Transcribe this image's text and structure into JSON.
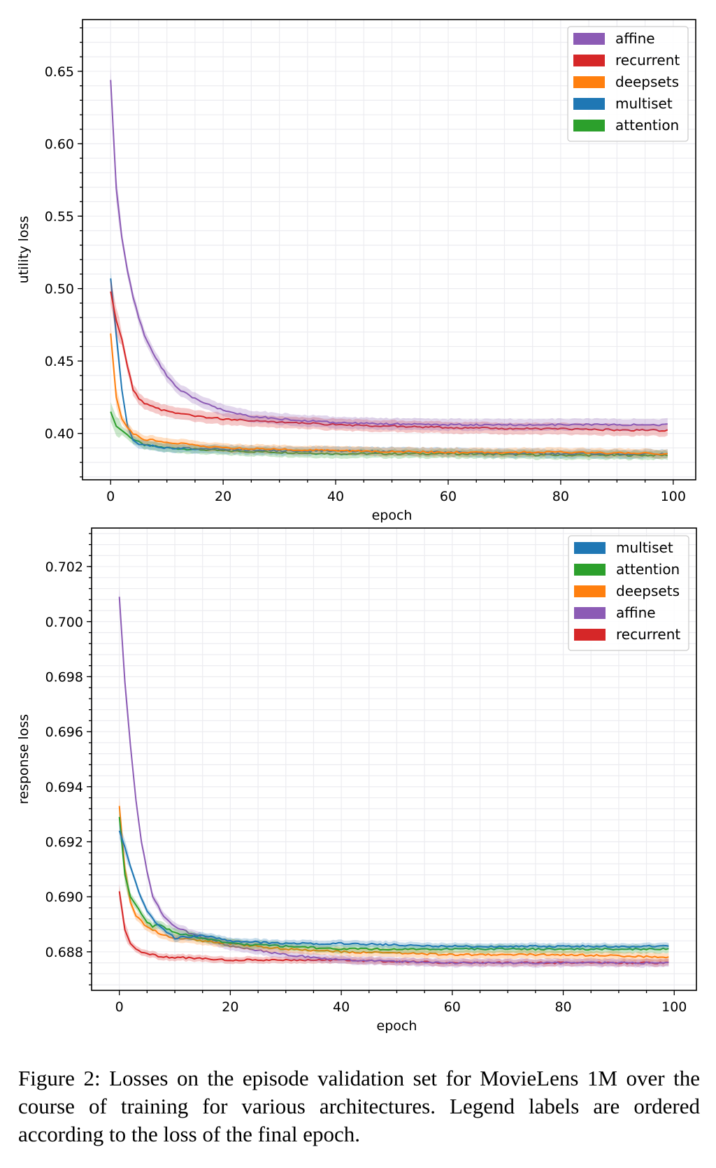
{
  "figure": {
    "caption": "Figure 2: Losses on the episode validation set for MovieLens 1M over the course of training for various architectures. Legend labels are ordered according to the loss of the final epoch."
  },
  "colors": {
    "affine": "#8c5bb5",
    "recurrent": "#d62728",
    "deepsets": "#ff7f0e",
    "multiset": "#1f77b4",
    "attention": "#2ca02c"
  },
  "chart_data": [
    {
      "type": "line",
      "title": "",
      "xlabel": "epoch",
      "ylabel": "utility loss",
      "xlim": [
        -5,
        104
      ],
      "ylim": [
        0.368,
        0.6857
      ],
      "xticks": [
        0,
        20,
        40,
        60,
        80,
        100
      ],
      "xtick_labels": [
        "0",
        "20",
        "40",
        "60",
        "80",
        "100"
      ],
      "yticks": [
        0.4,
        0.45,
        0.5,
        0.55,
        0.6,
        0.65
      ],
      "ytick_labels": [
        "0.40",
        "0.45",
        "0.50",
        "0.55",
        "0.60",
        "0.65"
      ],
      "grid": true,
      "legend_position": "top-right",
      "legend": [
        "affine",
        "recurrent",
        "deepsets",
        "multiset",
        "attention"
      ],
      "series": [
        {
          "name": "affine",
          "band": 0.004,
          "points": [
            [
              0,
              0.644
            ],
            [
              1,
              0.569
            ],
            [
              2,
              0.535
            ],
            [
              3,
              0.512
            ],
            [
              4,
              0.494
            ],
            [
              5,
              0.48
            ],
            [
              6,
              0.468
            ],
            [
              8,
              0.452
            ],
            [
              10,
              0.44
            ],
            [
              12,
              0.431
            ],
            [
              15,
              0.424
            ],
            [
              20,
              0.416
            ],
            [
              25,
              0.412
            ],
            [
              30,
              0.41
            ],
            [
              40,
              0.4075
            ],
            [
              50,
              0.4065
            ],
            [
              60,
              0.406
            ],
            [
              80,
              0.406
            ],
            [
              99,
              0.406
            ]
          ]
        },
        {
          "name": "recurrent",
          "band": 0.004,
          "points": [
            [
              0,
              0.498
            ],
            [
              1,
              0.478
            ],
            [
              2,
              0.465
            ],
            [
              3,
              0.446
            ],
            [
              4,
              0.43
            ],
            [
              5,
              0.424
            ],
            [
              6,
              0.421
            ],
            [
              8,
              0.418
            ],
            [
              10,
              0.415
            ],
            [
              15,
              0.412
            ],
            [
              20,
              0.41
            ],
            [
              30,
              0.408
            ],
            [
              40,
              0.406
            ],
            [
              50,
              0.405
            ],
            [
              60,
              0.404
            ],
            [
              80,
              0.403
            ],
            [
              99,
              0.402
            ]
          ]
        },
        {
          "name": "deepsets",
          "band": 0.003,
          "points": [
            [
              0,
              0.469
            ],
            [
              1,
              0.425
            ],
            [
              2,
              0.41
            ],
            [
              3,
              0.404
            ],
            [
              4,
              0.4
            ],
            [
              5,
              0.398
            ],
            [
              6,
              0.396
            ],
            [
              8,
              0.395
            ],
            [
              10,
              0.394
            ],
            [
              15,
              0.392
            ],
            [
              20,
              0.39
            ],
            [
              30,
              0.389
            ],
            [
              40,
              0.388
            ],
            [
              60,
              0.387
            ],
            [
              80,
              0.387
            ],
            [
              99,
              0.386
            ]
          ]
        },
        {
          "name": "multiset",
          "band": 0.003,
          "points": [
            [
              0,
              0.507
            ],
            [
              1,
              0.468
            ],
            [
              2,
              0.43
            ],
            [
              3,
              0.405
            ],
            [
              4,
              0.396
            ],
            [
              5,
              0.393
            ],
            [
              6,
              0.392
            ],
            [
              8,
              0.391
            ],
            [
              10,
              0.39
            ],
            [
              20,
              0.389
            ],
            [
              30,
              0.388
            ],
            [
              40,
              0.388
            ],
            [
              60,
              0.387
            ],
            [
              80,
              0.386
            ],
            [
              99,
              0.386
            ]
          ]
        },
        {
          "name": "attention",
          "band": 0.003,
          "points": [
            [
              0,
              0.415
            ],
            [
              1,
              0.405
            ],
            [
              2,
              0.402
            ],
            [
              3,
              0.399
            ],
            [
              4,
              0.396
            ],
            [
              5,
              0.394
            ],
            [
              6,
              0.392
            ],
            [
              8,
              0.391
            ],
            [
              10,
              0.39
            ],
            [
              15,
              0.389
            ],
            [
              20,
              0.388
            ],
            [
              30,
              0.387
            ],
            [
              40,
              0.386
            ],
            [
              60,
              0.386
            ],
            [
              80,
              0.385
            ],
            [
              99,
              0.385
            ]
          ]
        }
      ]
    },
    {
      "type": "line",
      "title": "",
      "xlabel": "epoch",
      "ylabel": "response loss",
      "xlim": [
        -5,
        104
      ],
      "ylim": [
        0.6866,
        0.7034
      ],
      "xticks": [
        0,
        20,
        40,
        60,
        80,
        100
      ],
      "xtick_labels": [
        "0",
        "20",
        "40",
        "60",
        "80",
        "100"
      ],
      "yticks": [
        0.688,
        0.69,
        0.692,
        0.694,
        0.696,
        0.698,
        0.7,
        0.702
      ],
      "ytick_labels": [
        "0.688",
        "0.690",
        "0.692",
        "0.694",
        "0.696",
        "0.698",
        "0.700",
        "0.702"
      ],
      "grid": true,
      "legend_position": "top-right",
      "legend": [
        "multiset",
        "attention",
        "deepsets",
        "affine",
        "recurrent"
      ],
      "series": [
        {
          "name": "multiset",
          "band": 0.00012,
          "points": [
            [
              0,
              0.6924
            ],
            [
              1,
              0.6918
            ],
            [
              2,
              0.6911
            ],
            [
              3,
              0.6905
            ],
            [
              4,
              0.6899
            ],
            [
              5,
              0.6895
            ],
            [
              6,
              0.6892
            ],
            [
              8,
              0.6888
            ],
            [
              10,
              0.6885
            ],
            [
              15,
              0.6886
            ],
            [
              20,
              0.6884
            ],
            [
              30,
              0.6883
            ],
            [
              40,
              0.6883
            ],
            [
              60,
              0.6882
            ],
            [
              80,
              0.6882
            ],
            [
              99,
              0.6882
            ]
          ]
        },
        {
          "name": "attention",
          "band": 0.00015,
          "points": [
            [
              0,
              0.6929
            ],
            [
              1,
              0.6908
            ],
            [
              2,
              0.69
            ],
            [
              3,
              0.6897
            ],
            [
              5,
              0.6891
            ],
            [
              6,
              0.6889
            ],
            [
              7,
              0.689
            ],
            [
              8,
              0.6889
            ],
            [
              10,
              0.6887
            ],
            [
              15,
              0.6885
            ],
            [
              20,
              0.6883
            ],
            [
              30,
              0.6882
            ],
            [
              40,
              0.6881
            ],
            [
              60,
              0.6881
            ],
            [
              80,
              0.6881
            ],
            [
              99,
              0.6881
            ]
          ]
        },
        {
          "name": "deepsets",
          "band": 0.00015,
          "points": [
            [
              0,
              0.6933
            ],
            [
              1,
              0.691
            ],
            [
              2,
              0.6898
            ],
            [
              3,
              0.6893
            ],
            [
              5,
              0.6889
            ],
            [
              8,
              0.6886
            ],
            [
              10,
              0.6885
            ],
            [
              15,
              0.6884
            ],
            [
              20,
              0.6883
            ],
            [
              30,
              0.6881
            ],
            [
              40,
              0.688
            ],
            [
              60,
              0.6879
            ],
            [
              80,
              0.6879
            ],
            [
              99,
              0.6878
            ]
          ]
        },
        {
          "name": "affine",
          "band": 0.00015,
          "points": [
            [
              0,
              0.7009
            ],
            [
              1,
              0.6978
            ],
            [
              2,
              0.6955
            ],
            [
              3,
              0.6935
            ],
            [
              4,
              0.692
            ],
            [
              5,
              0.6909
            ],
            [
              6,
              0.69
            ],
            [
              8,
              0.6893
            ],
            [
              10,
              0.6889
            ],
            [
              15,
              0.6885
            ],
            [
              20,
              0.6882
            ],
            [
              30,
              0.6879
            ],
            [
              40,
              0.6877
            ],
            [
              60,
              0.6876
            ],
            [
              80,
              0.6876
            ],
            [
              99,
              0.6876
            ]
          ]
        },
        {
          "name": "recurrent",
          "band": 0.00012,
          "points": [
            [
              0,
              0.6902
            ],
            [
              1,
              0.6888
            ],
            [
              2,
              0.6883
            ],
            [
              3,
              0.6881
            ],
            [
              4,
              0.688
            ],
            [
              6,
              0.6879
            ],
            [
              8,
              0.6878
            ],
            [
              10,
              0.6878
            ],
            [
              20,
              0.6877
            ],
            [
              40,
              0.6877
            ],
            [
              60,
              0.6876
            ],
            [
              80,
              0.6876
            ],
            [
              99,
              0.6876
            ]
          ]
        }
      ]
    }
  ]
}
